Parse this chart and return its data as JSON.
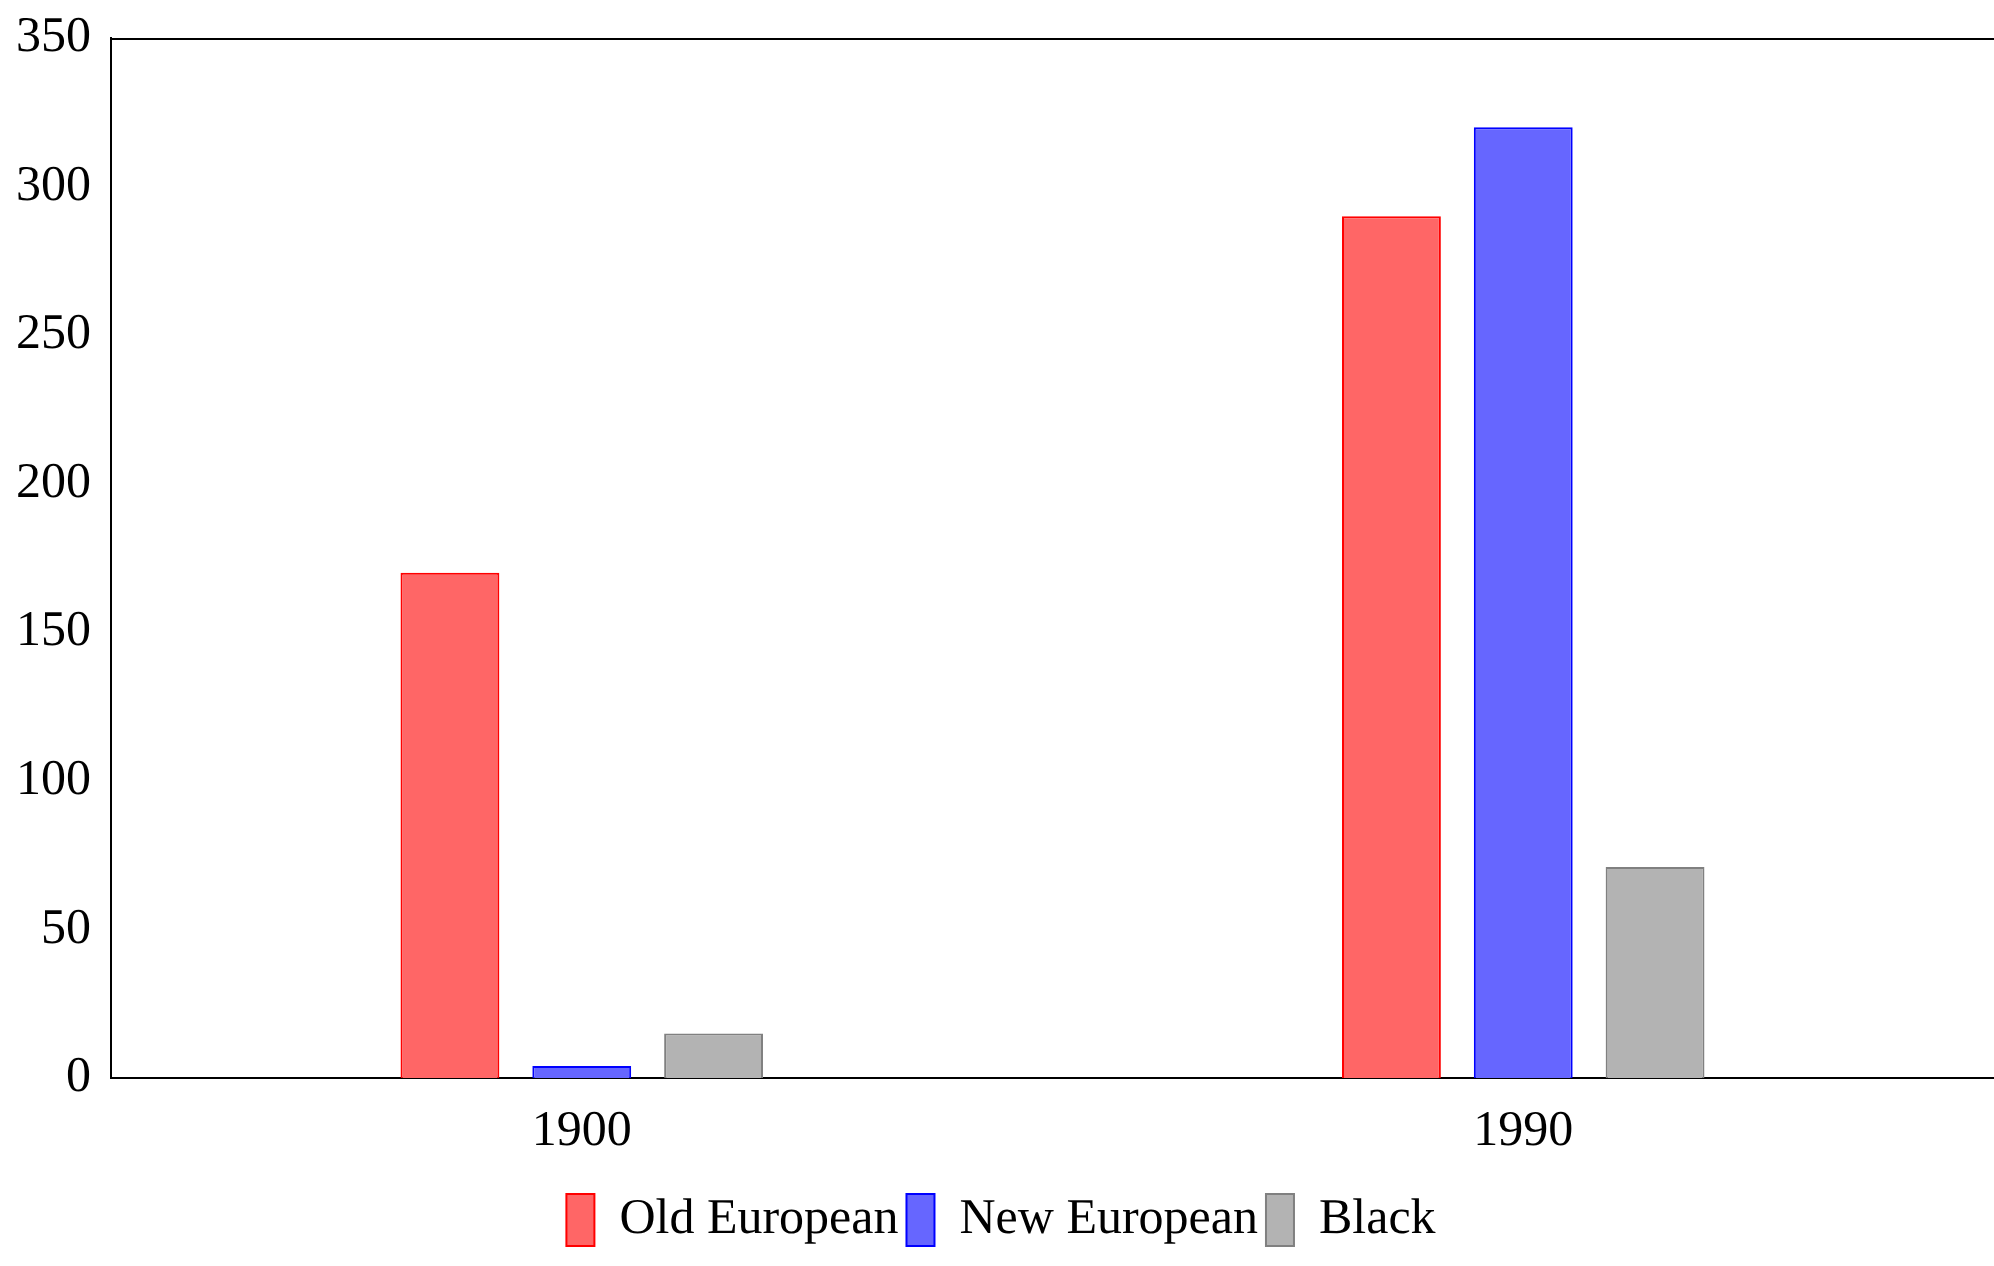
{
  "chart_data": {
    "type": "bar",
    "categories": [
      "1900",
      "1990"
    ],
    "series": [
      {
        "name": "Old European",
        "color": "#ff6666",
        "values": [
          170,
          290
        ]
      },
      {
        "name": "New European",
        "color": "#6666ff",
        "values": [
          4,
          320
        ]
      },
      {
        "name": "Black",
        "color": "#b3b3b3",
        "values": [
          15,
          71
        ]
      }
    ],
    "ylim": [
      0,
      350
    ],
    "yticks": [
      0,
      50,
      100,
      150,
      200,
      250,
      300,
      350
    ],
    "grid": false,
    "legend": "bottom"
  }
}
